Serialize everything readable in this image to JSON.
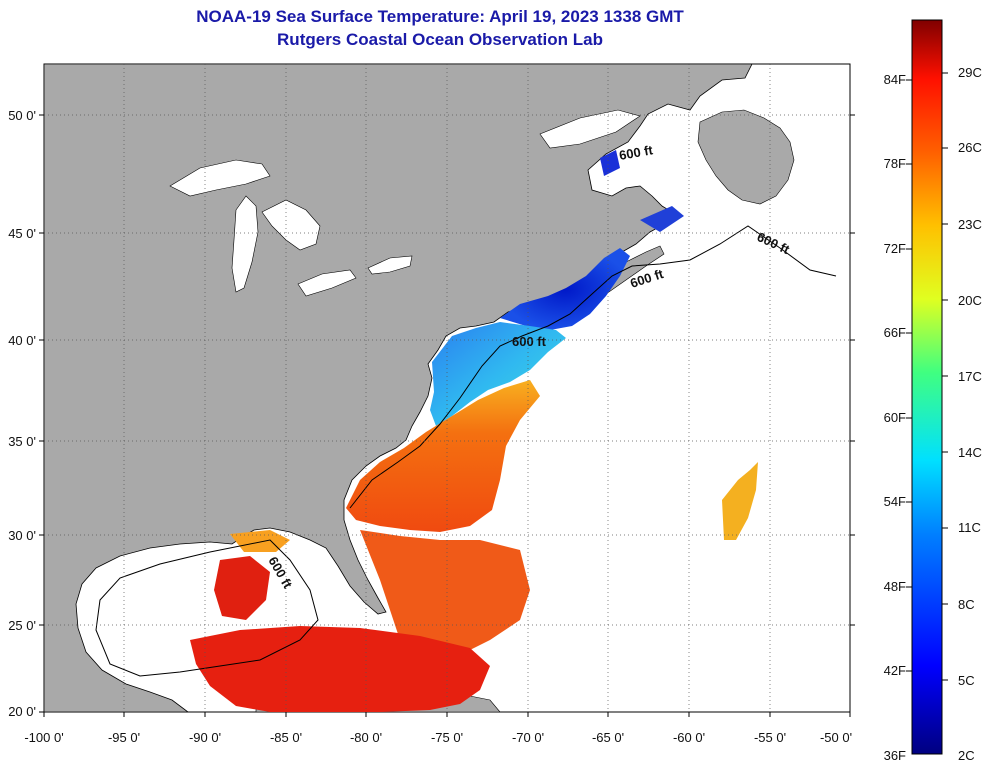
{
  "title": "NOAA-19 Sea Surface Temperature:  April 19, 2023 1338 GMT",
  "subtitle": "Rutgers Coastal Ocean Observation Lab",
  "lon_labels": [
    "-100 0'",
    "-95 0'",
    "-90 0'",
    "-85 0'",
    "-80 0'",
    "-75 0'",
    "-70 0'",
    "-65 0'",
    "-60 0'",
    "-55 0'",
    "-50 0'"
  ],
  "lat_labels": [
    "50 0'",
    "45 0'",
    "40 0'",
    "35 0'",
    "30 0'",
    "25 0'",
    "20 0'"
  ],
  "contour_label": "600 ft",
  "colorbar": {
    "f_labels": [
      "84F",
      "78F",
      "72F",
      "66F",
      "60F",
      "54F",
      "48F",
      "42F",
      "36F"
    ],
    "c_labels": [
      "29C",
      "26C",
      "23C",
      "20C",
      "17C",
      "14C",
      "11C",
      "8C",
      "5C",
      "2C"
    ]
  },
  "colors": {
    "land": "#a9a9a9",
    "title": "#1a1aa8",
    "cold": "#1a2fd0",
    "warm": "#e83010"
  }
}
